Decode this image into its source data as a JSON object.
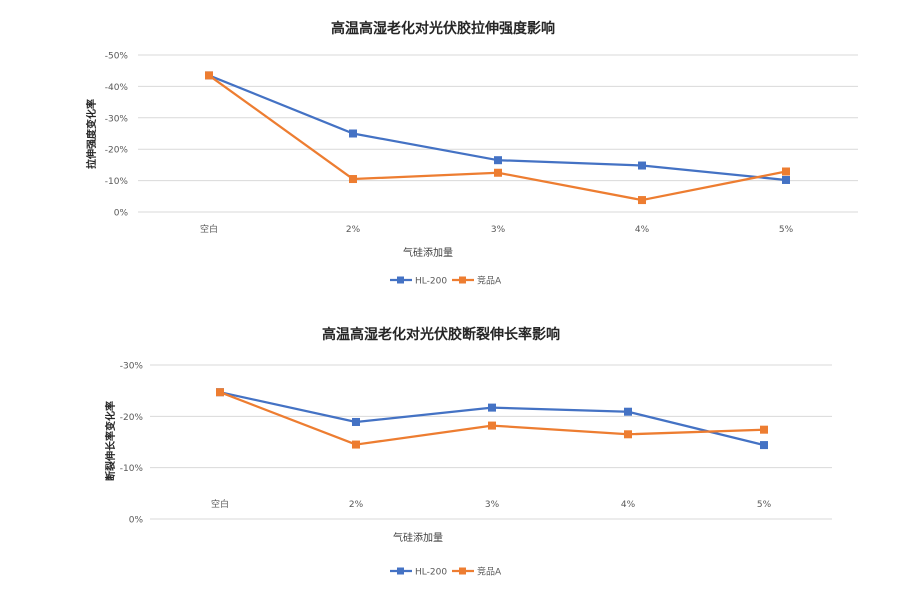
{
  "colors": {
    "series1": "#4472C4",
    "series2": "#ED7D31",
    "grid": "#D9D9D9",
    "text": "#595959",
    "title": "#262626"
  },
  "chart_data": [
    {
      "type": "line",
      "title": "高温高湿老化对光伏胶拉伸强度影响",
      "xlabel": "气硅添加量",
      "ylabel": "拉伸强度变化率",
      "categories": [
        "空白",
        "2%",
        "3%",
        "4%",
        "5%"
      ],
      "y_ticks": [
        0,
        -10,
        -20,
        -30,
        -40,
        -50
      ],
      "y_tick_labels": [
        "0%",
        "-10%",
        "-20%",
        "-30%",
        "-40%",
        "-50%"
      ],
      "ylim": [
        0,
        -50
      ],
      "grid": true,
      "legend_position": "bottom",
      "series": [
        {
          "name": "HL-200",
          "values": [
            -43.5,
            -25,
            -16.5,
            -14.8,
            -10.2
          ]
        },
        {
          "name": "竞品A",
          "values": [
            -43.5,
            -10.5,
            -12.5,
            -3.8,
            -12.9
          ]
        }
      ]
    },
    {
      "type": "line",
      "title": "高温高湿老化对光伏胶断裂伸长率影响",
      "xlabel": "气硅添加量",
      "ylabel": "断裂伸长率变化率",
      "categories": [
        "空白",
        "2%",
        "3%",
        "4%",
        "5%"
      ],
      "y_ticks": [
        0,
        -10,
        -20,
        -30
      ],
      "y_tick_labels": [
        "0%",
        "-10%",
        "-20%",
        "-30%"
      ],
      "ylim": [
        0,
        -30
      ],
      "grid": true,
      "legend_position": "bottom",
      "series": [
        {
          "name": "HL-200",
          "values": [
            -24.7,
            -18.9,
            -21.7,
            -20.9,
            -14.4
          ]
        },
        {
          "name": "竞品A",
          "values": [
            -24.7,
            -14.5,
            -18.2,
            -16.5,
            -17.4
          ]
        }
      ]
    }
  ]
}
